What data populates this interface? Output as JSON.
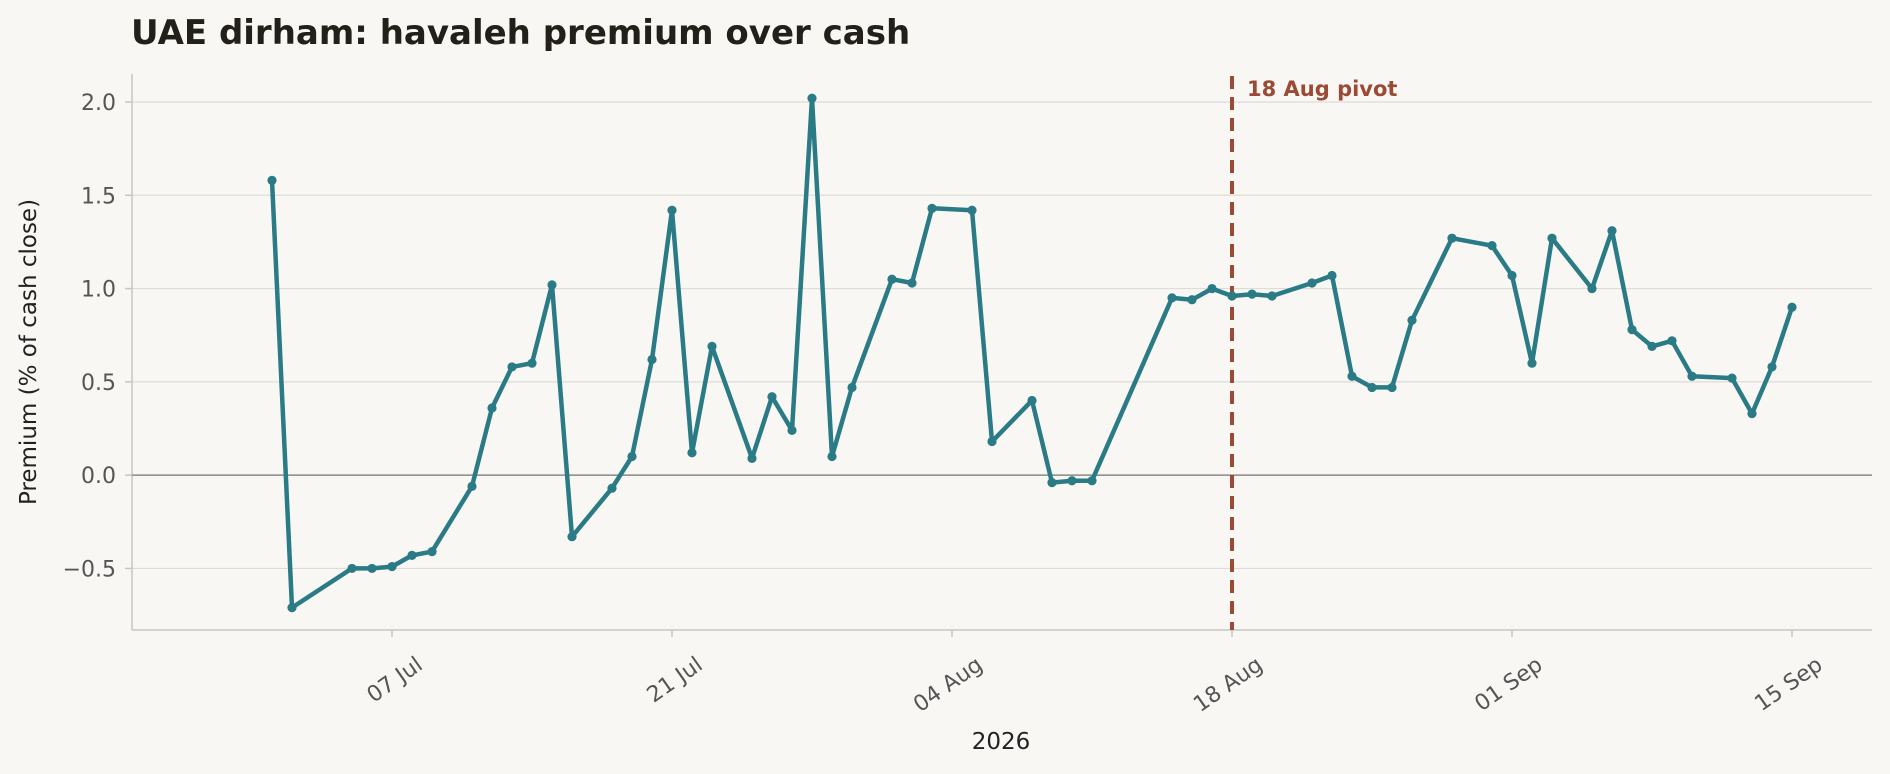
{
  "chart_data": {
    "type": "line",
    "title": "UAE dirham: havaleh premium over cash",
    "xlabel": "2026",
    "ylabel": "Premium (% of cash close)",
    "ylim": [
      -0.83,
      2.15
    ],
    "xlim": [
      "2026-06-24",
      "2026-09-19"
    ],
    "grid": "horizontal",
    "x_ticks": [
      "2026-07-07",
      "2026-07-21",
      "2026-08-04",
      "2026-08-18",
      "2026-09-01",
      "2026-09-15"
    ],
    "x_tick_labels": [
      "07 Jul",
      "21 Jul",
      "04 Aug",
      "18 Aug",
      "01 Sep",
      "15 Sep"
    ],
    "y_ticks": [
      -0.5,
      0.0,
      0.5,
      1.0,
      1.5,
      2.0
    ],
    "y_tick_labels": [
      "−0.5",
      "0.0",
      "0.5",
      "1.0",
      "1.5",
      "2.0"
    ],
    "reference_line": {
      "y": 0.0,
      "color": "#8a8a84"
    },
    "annotation": {
      "x": "2026-08-18",
      "label": "18 Aug pivot",
      "color": "#9a4a35",
      "style": "dashed"
    },
    "series": [
      {
        "color": "#2a7b86",
        "x": [
          "2026-07-01",
          "2026-07-02",
          "2026-07-05",
          "2026-07-06",
          "2026-07-07",
          "2026-07-08",
          "2026-07-09",
          "2026-07-11",
          "2026-07-12",
          "2026-07-13",
          "2026-07-14",
          "2026-07-15",
          "2026-07-16",
          "2026-07-18",
          "2026-07-19",
          "2026-07-20",
          "2026-07-21",
          "2026-07-22",
          "2026-07-23",
          "2026-07-25",
          "2026-07-26",
          "2026-07-27",
          "2026-07-28",
          "2026-07-29",
          "2026-07-30",
          "2026-08-01",
          "2026-08-02",
          "2026-08-03",
          "2026-08-05",
          "2026-08-06",
          "2026-08-08",
          "2026-08-09",
          "2026-08-10",
          "2026-08-11",
          "2026-08-15",
          "2026-08-16",
          "2026-08-17",
          "2026-08-18",
          "2026-08-19",
          "2026-08-20",
          "2026-08-22",
          "2026-08-23",
          "2026-08-24",
          "2026-08-25",
          "2026-08-26",
          "2026-08-27",
          "2026-08-29",
          "2026-08-31",
          "2026-09-01",
          "2026-09-02",
          "2026-09-03",
          "2026-09-05",
          "2026-09-06",
          "2026-09-07",
          "2026-09-08",
          "2026-09-09",
          "2026-09-10",
          "2026-09-12",
          "2026-09-13",
          "2026-09-14",
          "2026-09-15"
        ],
        "y": [
          1.58,
          -0.71,
          -0.5,
          -0.5,
          -0.49,
          -0.43,
          -0.41,
          -0.06,
          0.36,
          0.58,
          0.6,
          1.02,
          -0.33,
          -0.07,
          0.1,
          0.62,
          1.42,
          0.12,
          0.69,
          0.09,
          0.42,
          0.24,
          2.02,
          0.1,
          0.47,
          1.05,
          1.03,
          1.43,
          1.42,
          0.18,
          0.4,
          -0.04,
          -0.03,
          -0.03,
          0.95,
          0.94,
          1.0,
          0.96,
          0.97,
          0.96,
          1.03,
          1.07,
          0.53,
          0.47,
          0.47,
          0.83,
          1.27,
          1.23,
          1.07,
          0.6,
          1.27,
          1.0,
          1.31,
          0.78,
          0.69,
          0.72,
          0.53,
          0.52,
          0.33,
          0.58,
          0.9
        ]
      }
    ]
  }
}
